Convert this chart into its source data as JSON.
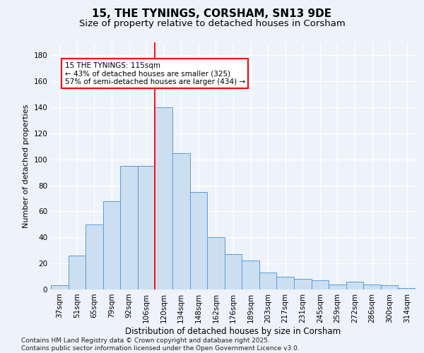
{
  "title1": "15, THE TYNINGS, CORSHAM, SN13 9DE",
  "title2": "Size of property relative to detached houses in Corsham",
  "xlabel": "Distribution of detached houses by size in Corsham",
  "ylabel": "Number of detached properties",
  "categories": [
    "37sqm",
    "51sqm",
    "65sqm",
    "79sqm",
    "92sqm",
    "106sqm",
    "120sqm",
    "134sqm",
    "148sqm",
    "162sqm",
    "176sqm",
    "189sqm",
    "203sqm",
    "217sqm",
    "231sqm",
    "245sqm",
    "259sqm",
    "272sqm",
    "286sqm",
    "300sqm",
    "314sqm"
  ],
  "values": [
    3,
    26,
    50,
    68,
    95,
    95,
    140,
    105,
    75,
    40,
    27,
    22,
    13,
    10,
    8,
    7,
    4,
    6,
    4,
    3,
    1
  ],
  "bar_color": "#ccdff0",
  "bar_edge_color": "#5b9bd5",
  "vline_x_index": 6,
  "vline_color": "red",
  "annotation_text": "15 THE TYNINGS: 115sqm\n← 43% of detached houses are smaller (325)\n57% of semi-detached houses are larger (434) →",
  "annotation_box_color": "white",
  "annotation_box_edge": "red",
  "ylim": [
    0,
    190
  ],
  "yticks": [
    0,
    20,
    40,
    60,
    80,
    100,
    120,
    140,
    160,
    180
  ],
  "background_color": "#eef2fb",
  "grid_color": "white",
  "footer": "Contains HM Land Registry data © Crown copyright and database right 2025.\nContains public sector information licensed under the Open Government Licence v3.0.",
  "title_fontsize": 11,
  "subtitle_fontsize": 9.5,
  "footer_fontsize": 6.5,
  "annotation_fontsize": 7.5,
  "ylabel_fontsize": 8,
  "xlabel_fontsize": 8.5,
  "tick_fontsize": 7.5
}
